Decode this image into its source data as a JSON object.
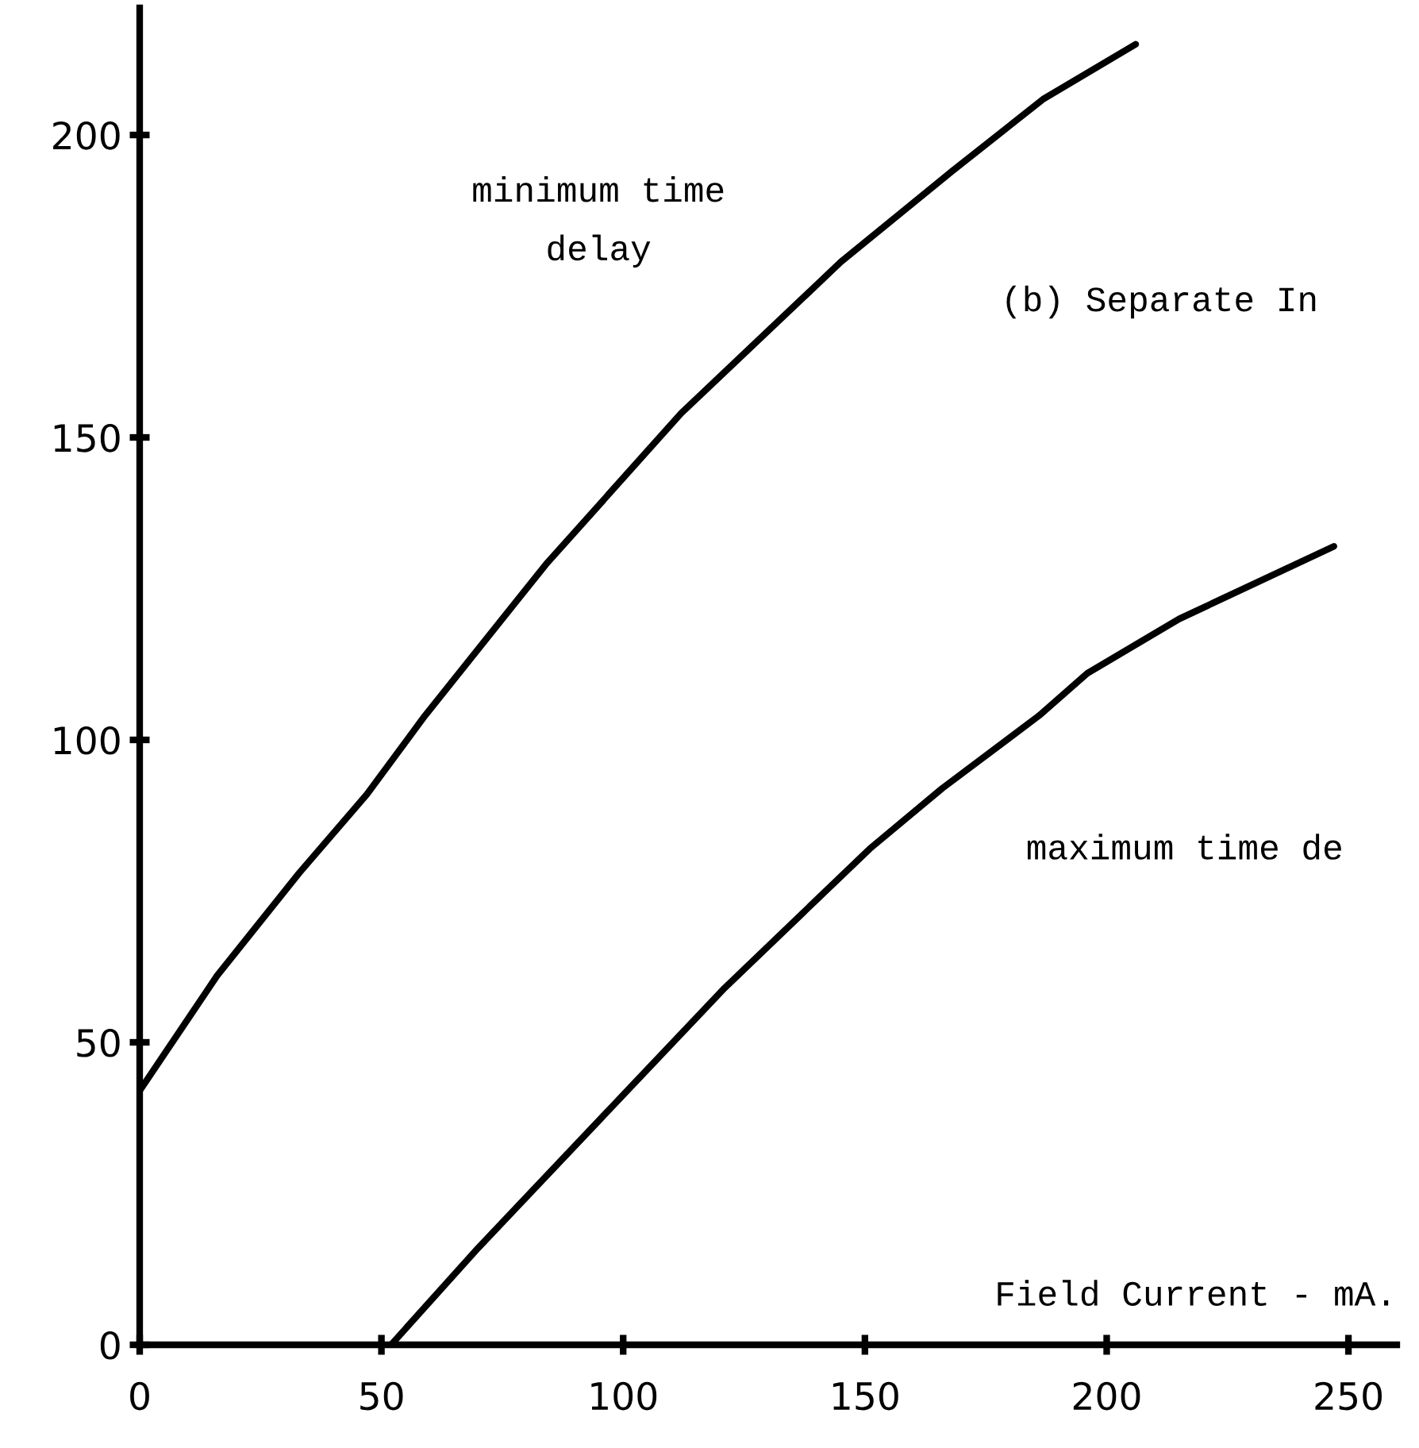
{
  "chart_data": {
    "type": "line",
    "xlabel": "Field Current - mA.",
    "xlim": [
      0,
      260
    ],
    "ylim": [
      0,
      221
    ],
    "xticks": [
      0,
      50,
      100,
      150,
      200,
      250
    ],
    "yticks": [
      0,
      50,
      100,
      150,
      200
    ],
    "grid": false,
    "legend": false,
    "marker": "none",
    "line_style": "solid",
    "series": [
      {
        "color": "#000000",
        "x": [
          0,
          16,
          33,
          47,
          59,
          84,
          112,
          145,
          168,
          187,
          206
        ],
        "values": [
          42,
          61,
          78,
          91,
          104,
          129,
          154,
          179,
          194,
          206,
          215
        ]
      },
      {
        "color": "#000000",
        "x": [
          52,
          70,
          102,
          121,
          151,
          166,
          186,
          196,
          215,
          247
        ],
        "values": [
          0,
          16,
          43,
          59,
          82,
          92,
          104,
          111,
          120,
          132
        ]
      }
    ],
    "annotations": [
      "minimum time\ndelay",
      "(b) Separate In",
      "maximum time de"
    ]
  }
}
